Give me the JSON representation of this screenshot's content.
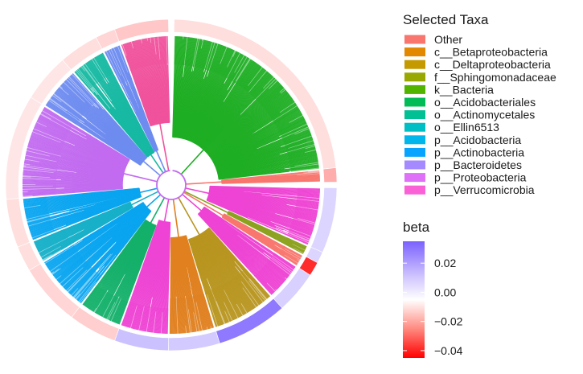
{
  "chart_data": {
    "type": "circular-phylogenetic-tree",
    "taxa_legend": {
      "title": "Selected Taxa",
      "entries": [
        {
          "label": "Other",
          "color": "#F8766D"
        },
        {
          "label": "c__Betaproteobacteria",
          "color": "#E38900"
        },
        {
          "label": "c__Deltaproteobacteria",
          "color": "#C49A00"
        },
        {
          "label": "f__Sphingomonadaceae",
          "color": "#99A800"
        },
        {
          "label": "k__Bacteria",
          "color": "#53B400"
        },
        {
          "label": "o__Acidobacteriales",
          "color": "#00BC56"
        },
        {
          "label": "o__Actinomycetales",
          "color": "#00C094"
        },
        {
          "label": "o__Ellin6513",
          "color": "#00BFC4"
        },
        {
          "label": "p__Acidobacteria",
          "color": "#00B6EB"
        },
        {
          "label": "p__Actinobacteria",
          "color": "#06A4FF"
        },
        {
          "label": "p__Bacteroidetes",
          "color": "#A58AFF"
        },
        {
          "label": "p__Proteobacteria",
          "color": "#DF70F8"
        },
        {
          "label": "p__Verrucomicrobia",
          "color": "#FB61D7"
        }
      ]
    },
    "beta_legend": {
      "title": "beta",
      "ticks": [
        "0.02",
        "0.00",
        "−0.02",
        "−0.04"
      ],
      "range": [
        -0.045,
        0.035
      ],
      "colors": {
        "high": "#7B61FF",
        "mid": "#FFFFFF",
        "low": "#FF0000"
      }
    },
    "clades": [
      {
        "taxon": "k__Bacteria",
        "color": "#1FAE24",
        "beta": -0.003
      },
      {
        "taxon": "Other",
        "color": "#F8766D",
        "beta": -0.01
      },
      {
        "taxon": "p__Proteobacteria",
        "color": "#EE44D4",
        "beta": 0.006
      },
      {
        "taxon": "f__Sphingomonadaceae",
        "color": "#8CA21F",
        "beta": 0.006
      },
      {
        "taxon": "Other",
        "color": "#F8766D",
        "beta": -0.035
      },
      {
        "taxon": "p__Proteobacteria",
        "color": "#EE44D4",
        "beta": 0.007
      },
      {
        "taxon": "c__Deltaproteobacteria",
        "color": "#B8951F",
        "beta": 0.028
      },
      {
        "taxon": "c__Betaproteobacteria",
        "color": "#E0801F",
        "beta": 0.008
      },
      {
        "taxon": "p__Proteobacteria",
        "color": "#EE44D4",
        "beta": 0.01
      },
      {
        "taxon": "o__Acidobacteriales",
        "color": "#14B06A",
        "beta": -0.005
      },
      {
        "taxon": "p__Acidobacteria",
        "color": "#0AA5F0",
        "beta": -0.004
      },
      {
        "taxon": "o__Ellin6513",
        "color": "#17B0C8",
        "beta": -0.003
      },
      {
        "taxon": "p__Acidobacteria",
        "color": "#0AA5F0",
        "beta": -0.003
      },
      {
        "taxon": "p__Bacteroidetes",
        "color": "#C26BF0",
        "beta": -0.002
      },
      {
        "taxon": "p__Actinobacteria",
        "color": "#6E8CF0",
        "beta": -0.002
      },
      {
        "taxon": "o__Actinomycetales",
        "color": "#17B9A3",
        "beta": -0.003
      },
      {
        "taxon": "p__Actinobacteria",
        "color": "#6E8CF0",
        "beta": -0.004
      },
      {
        "taxon": "p__Verrucomicrobia",
        "color": "#F0529C",
        "beta": -0.006
      }
    ]
  }
}
